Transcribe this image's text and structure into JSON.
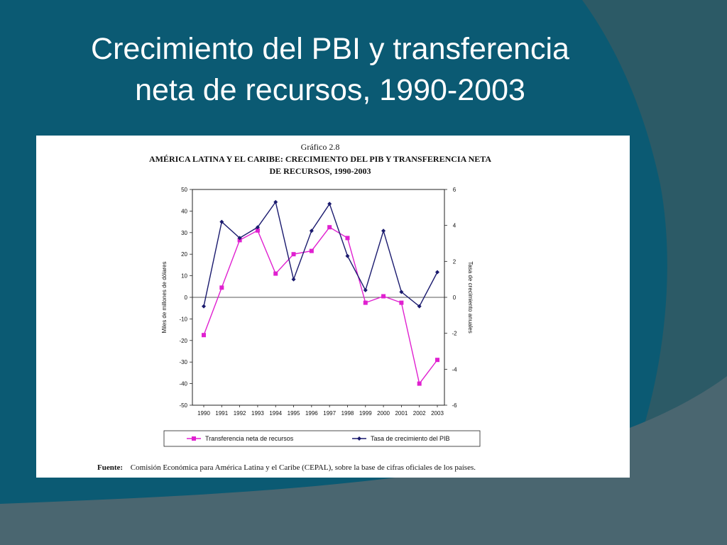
{
  "slide": {
    "title_line1": "Crecimiento del PBI y transferencia",
    "title_line2": "neta de recursos, 1990-2003"
  },
  "colors": {
    "background": "#0b5a73",
    "shape_dark": "#2c5a66",
    "shape_gray": "#4a6670",
    "series_transfer": "#e020d0",
    "series_growth": "#1a1a6e"
  },
  "chart_data": {
    "type": "line",
    "figure_label": "Gráfico 2.8",
    "title_line1": "AMÉRICA LATINA Y EL CARIBE: CRECIMIENTO DEL PIB Y TRANSFERENCIA NETA",
    "title_line2": "DE RECURSOS, 1990-2003",
    "ylabel_left": "Miles de millones de dólares",
    "ylabel_right": "Tasa de crecimiento anuales",
    "ylim_left": [
      -50,
      50
    ],
    "ylim_right": [
      -6,
      6
    ],
    "yticks_left": [
      "50",
      "40",
      "30",
      "20",
      "10",
      "0",
      "-10",
      "-20",
      "-30",
      "-40",
      "-50"
    ],
    "yticks_right": [
      "6",
      "4",
      "2",
      "0",
      "-2",
      "-4",
      "-6"
    ],
    "categories": [
      "1990",
      "1991",
      "1992",
      "1993",
      "1994",
      "1995",
      "1996",
      "1997",
      "1998",
      "1999",
      "2000",
      "2001",
      "2002",
      "2003"
    ],
    "series": [
      {
        "name": "Transferencia neta de recursos",
        "axis": "left",
        "marker": "square",
        "values": [
          -17.5,
          4.5,
          26.5,
          31,
          11,
          20,
          21.5,
          32.5,
          27.5,
          -2.5,
          0.5,
          -2.5,
          -40,
          -29
        ]
      },
      {
        "name": "Tasa de crecimiento del PIB",
        "axis": "right",
        "marker": "diamond",
        "values": [
          -0.5,
          4.2,
          3.3,
          3.9,
          5.3,
          1.0,
          3.7,
          5.2,
          2.3,
          0.4,
          3.7,
          0.3,
          -0.5,
          1.4
        ]
      }
    ],
    "source_label": "Fuente:",
    "source_text": "Comisión Económica para América Latina y el Caribe (CEPAL), sobre la base de cifras oficiales de los países."
  }
}
